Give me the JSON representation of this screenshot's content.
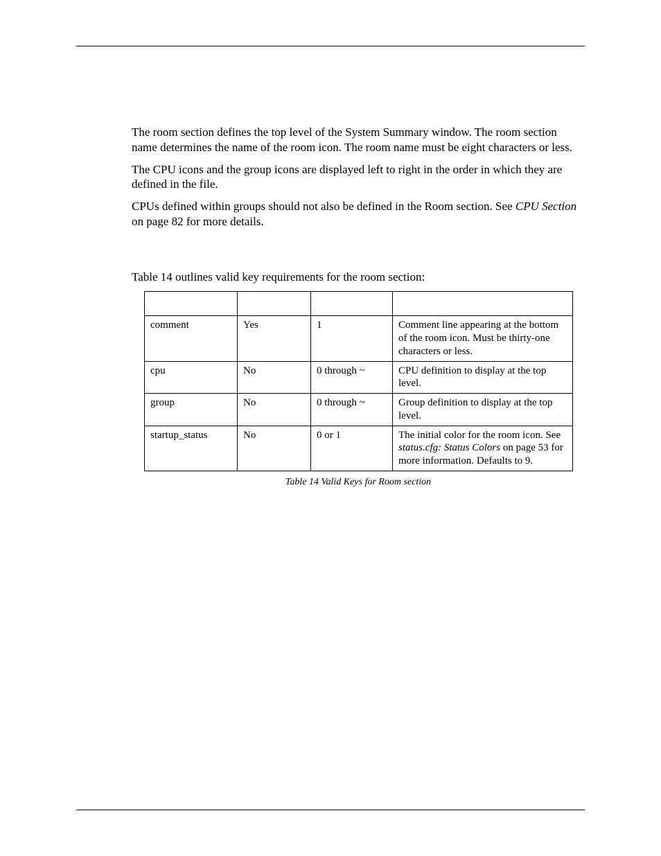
{
  "paragraphs": {
    "p1": "The room section defines the top level of the System Summary window. The room section name determines the name of the room icon. The room name must be eight characters or less.",
    "p2": "The CPU icons and the group icons are displayed left to right in the order in which they are defined in the file.",
    "p3_pre": "CPUs defined within groups should not also be defined in the Room section. See ",
    "p3_italic": "CPU Section",
    "p3_post": " on page 82 for more details.",
    "lead": "Table 14 outlines valid key requirements for the room section:"
  },
  "table": {
    "headers": [
      "",
      "",
      "",
      ""
    ],
    "rows": [
      {
        "key": "comment",
        "req": "Yes",
        "occ": "1",
        "desc": "Comment line appearing at the bottom of the room icon. Must be thirty-one characters or less."
      },
      {
        "key": "cpu",
        "req": "No",
        "occ": "0 through ~",
        "desc": "CPU definition to display at the top level."
      },
      {
        "key": "group",
        "req": "No",
        "occ": "0 through ~",
        "desc": "Group definition to display at the top level."
      },
      {
        "key": "startup_status",
        "req": "No",
        "occ": "0 or 1",
        "desc_pre": "The initial color for the room icon. See ",
        "desc_italic": "status.cfg: Status Colors",
        "desc_post": " on page 53 for more information. Defaults to 9."
      }
    ]
  },
  "caption": "Table 14 Valid Keys for Room section"
}
